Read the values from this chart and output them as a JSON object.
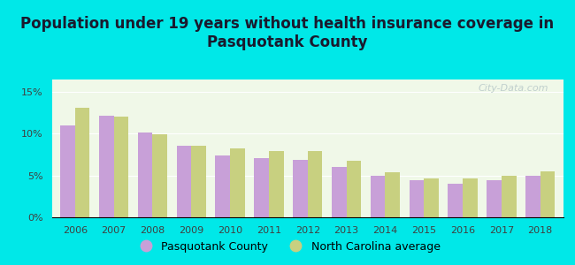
{
  "title": "Population under 19 years without health insurance coverage in\nPasquotank County",
  "years": [
    2006,
    2007,
    2008,
    2009,
    2010,
    2011,
    2012,
    2013,
    2014,
    2015,
    2016,
    2017,
    2018
  ],
  "pasquotank": [
    11.0,
    12.2,
    10.2,
    8.6,
    7.4,
    7.1,
    6.9,
    6.0,
    5.0,
    4.4,
    4.0,
    4.4,
    5.0
  ],
  "nc_average": [
    13.1,
    12.1,
    9.9,
    8.6,
    8.2,
    7.9,
    7.9,
    6.8,
    5.4,
    4.7,
    4.7,
    5.0,
    5.5
  ],
  "pasquotank_color": "#c8a0d8",
  "nc_color": "#c8d080",
  "background_outer": "#00e8e8",
  "background_inner": "#f0f8e8",
  "ylabel_ticks": [
    "0%",
    "5%",
    "10%",
    "15%"
  ],
  "yticks": [
    0,
    5,
    10,
    15
  ],
  "ylim": [
    0,
    16.5
  ],
  "legend_pasquotank": "Pasquotank County",
  "legend_nc": "North Carolina average",
  "title_fontsize": 12,
  "bar_width": 0.38,
  "watermark": "City-Data.com"
}
